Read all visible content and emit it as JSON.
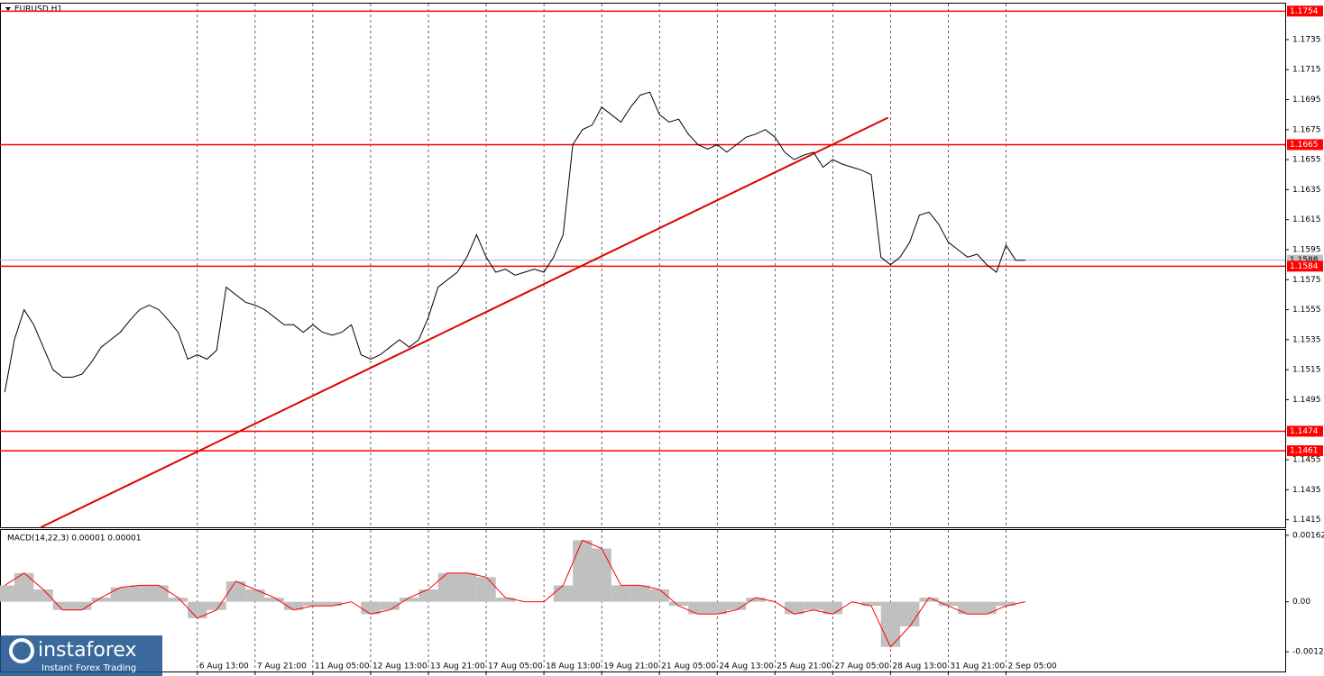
{
  "chart_data": [
    {
      "type": "line",
      "title": "EURUSD,H1",
      "color": "#000000",
      "x": [
        2,
        6,
        10,
        14,
        18,
        22,
        26,
        30,
        34,
        38,
        42,
        46,
        50,
        54,
        58,
        62,
        66,
        70,
        74,
        78,
        82,
        86,
        90,
        94,
        98,
        102,
        106,
        110,
        114,
        118,
        122,
        126,
        130,
        134,
        138,
        142,
        146,
        150,
        154,
        158,
        162,
        166,
        170,
        174,
        178,
        182,
        186,
        190,
        194,
        198,
        202,
        206,
        210,
        214,
        218,
        222,
        226,
        230,
        234,
        238,
        242,
        246,
        250,
        254,
        258,
        262,
        266,
        270,
        274,
        278,
        282,
        286,
        290,
        294,
        298,
        302,
        306,
        310,
        314,
        318,
        322,
        326,
        330,
        334,
        338,
        342,
        346,
        350,
        354,
        358,
        362,
        366,
        370,
        374,
        378,
        382,
        386,
        390,
        394,
        398,
        402,
        406,
        410,
        414,
        418,
        422,
        426
      ],
      "values": [
        1.15,
        1.1535,
        1.1555,
        1.1545,
        1.153,
        1.1515,
        1.151,
        1.151,
        1.1512,
        1.152,
        1.153,
        1.1535,
        1.154,
        1.1548,
        1.1555,
        1.1558,
        1.1555,
        1.1548,
        1.154,
        1.1522,
        1.1525,
        1.1522,
        1.1528,
        1.157,
        1.1565,
        1.156,
        1.1558,
        1.1555,
        1.155,
        1.1545,
        1.1545,
        1.154,
        1.1545,
        1.154,
        1.1538,
        1.154,
        1.1545,
        1.1525,
        1.1522,
        1.1525,
        1.153,
        1.1535,
        1.153,
        1.1535,
        1.155,
        1.157,
        1.1575,
        1.158,
        1.159,
        1.1605,
        1.159,
        1.158,
        1.1582,
        1.1578,
        1.158,
        1.1582,
        1.158,
        1.159,
        1.1605,
        1.1665,
        1.1675,
        1.1678,
        1.169,
        1.1685,
        1.168,
        1.169,
        1.1698,
        1.17,
        1.1685,
        1.168,
        1.1682,
        1.1672,
        1.1665,
        1.1662,
        1.1665,
        1.166,
        1.1665,
        1.167,
        1.1672,
        1.1675,
        1.167,
        1.166,
        1.1655,
        1.1658,
        1.166,
        1.165,
        1.1655,
        1.1652,
        1.165,
        1.1648,
        1.1645,
        1.159,
        1.1585,
        1.159,
        1.16,
        1.1618,
        1.162,
        1.1612,
        1.16,
        1.1595,
        1.159,
        1.1592,
        1.1585,
        1.158,
        1.1598,
        1.1588,
        1.1588
      ],
      "xlim": [
        0,
        534
      ],
      "ylim": [
        1.141,
        1.1759
      ],
      "yticks": [
        1.1415,
        1.1435,
        1.1455,
        1.1495,
        1.1515,
        1.1535,
        1.1555,
        1.1575,
        1.1595,
        1.1615,
        1.1635,
        1.1655,
        1.1675,
        1.1695,
        1.1715,
        1.1735
      ],
      "levels": [
        1.1754,
        1.1665,
        1.1584,
        1.1474,
        1.1461
      ],
      "level_color": "#ff0000",
      "current_price": 1.1588,
      "trendline": {
        "x": [
          17,
          369
        ],
        "y": [
          1.141,
          1.1683
        ],
        "color": "#e00000"
      },
      "grid": true
    },
    {
      "type": "histogram-line",
      "title": "MACD(14,22,3) 0.00001 0.00001",
      "color": "#c0c0c0",
      "signal_color": "#ff0000",
      "x": [
        2,
        10,
        18,
        26,
        34,
        42,
        50,
        58,
        66,
        74,
        82,
        90,
        98,
        106,
        114,
        122,
        130,
        138,
        146,
        154,
        162,
        170,
        178,
        186,
        194,
        202,
        210,
        218,
        226,
        234,
        242,
        250,
        258,
        266,
        274,
        282,
        290,
        298,
        306,
        314,
        322,
        330,
        338,
        346,
        354,
        362,
        370,
        378,
        386,
        394,
        402,
        410,
        418,
        426
      ],
      "values": [
        0.0004,
        0.0007,
        0.0003,
        -0.0002,
        -0.0002,
        0.0001,
        0.00035,
        0.0004,
        0.0004,
        0.0001,
        -0.0004,
        -0.0002,
        0.0005,
        0.0003,
        0.0001,
        -0.0002,
        -0.0001,
        -0.0001,
        0.0,
        -0.0003,
        -0.0002,
        0.0001,
        0.0003,
        0.0007,
        0.0007,
        0.0006,
        0.0001,
        0.0,
        0.0,
        0.0004,
        0.0015,
        0.0013,
        0.0004,
        0.0004,
        0.0003,
        -0.0001,
        -0.0003,
        -0.0003,
        -0.0002,
        0.0001,
        0.0,
        -0.0003,
        -0.0002,
        -0.0003,
        0.0,
        -0.0001,
        -0.0011,
        -0.0006,
        0.0001,
        -0.0001,
        -0.0003,
        -0.0003,
        -0.0001,
        0.0
      ],
      "xlim": [
        0,
        534
      ],
      "ylim": [
        -0.0017,
        0.00175
      ],
      "yticks": [
        0.00162,
        {
          "value": 0,
          "label": "0.00"
        },
        -0.00122
      ],
      "xticks": [
        {
          "value": 82,
          "label": "6 Aug 13:00"
        },
        {
          "value": 106,
          "label": "7 Aug 21:00"
        },
        {
          "value": 130,
          "label": "11 Aug 05:00"
        },
        {
          "value": 154,
          "label": "12 Aug 13:00"
        },
        {
          "value": 178,
          "label": "13 Aug 21:00"
        },
        {
          "value": 202,
          "label": "17 Aug 05:00"
        },
        {
          "value": 226,
          "label": "18 Aug 13:00"
        },
        {
          "value": 250,
          "label": "19 Aug 21:00"
        },
        {
          "value": 274,
          "label": "21 Aug 05:00"
        },
        {
          "value": 298,
          "label": "24 Aug 13:00"
        },
        {
          "value": 322,
          "label": "25 Aug 21:00"
        },
        {
          "value": 346,
          "label": "27 Aug 05:00"
        },
        {
          "value": 370,
          "label": "28 Aug 13:00"
        },
        {
          "value": 394,
          "label": "31 Aug 21:00"
        },
        {
          "value": 418,
          "label": "2 Sep 05:00"
        }
      ]
    }
  ],
  "logo": {
    "name": "instaforex",
    "tagline": "Instant Forex Trading"
  }
}
